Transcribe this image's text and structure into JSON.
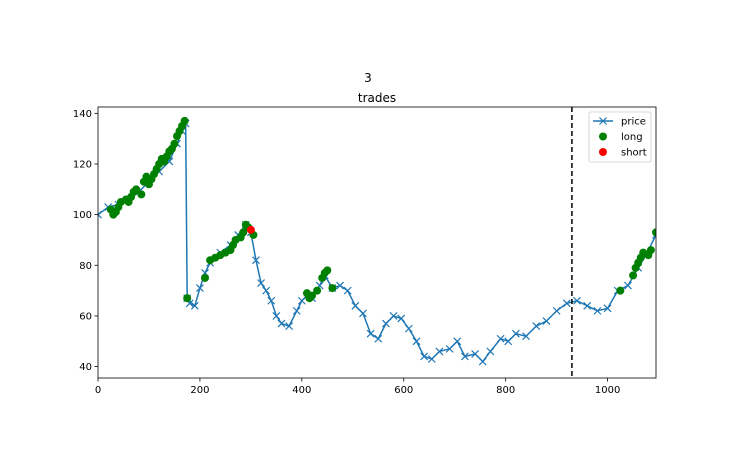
{
  "suptitle": "3",
  "chart_data": {
    "type": "line",
    "title": "trades",
    "xlabel": "",
    "ylabel": "",
    "xlim": [
      0,
      1095
    ],
    "ylim": [
      35.5,
      142.5
    ],
    "xticks": [
      0,
      200,
      400,
      600,
      800,
      1000
    ],
    "yticks": [
      40,
      60,
      80,
      100,
      120,
      140
    ],
    "grid": false,
    "legend_position": "top-right",
    "vline": {
      "x": 930,
      "style": "dashed",
      "color": "#000000"
    },
    "series": [
      {
        "name": "price",
        "kind": "line-x-marker",
        "color": "#1f77b4",
        "x": [
          0,
          20,
          40,
          60,
          80,
          100,
          120,
          140,
          155,
          165,
          172,
          175,
          180,
          190,
          200,
          210,
          220,
          240,
          260,
          275,
          290,
          300,
          310,
          320,
          330,
          340,
          350,
          360,
          375,
          390,
          400,
          410,
          420,
          435,
          445,
          460,
          475,
          490,
          505,
          520,
          535,
          550,
          565,
          580,
          595,
          610,
          625,
          640,
          655,
          670,
          690,
          705,
          720,
          740,
          755,
          770,
          790,
          805,
          820,
          840,
          860,
          880,
          900,
          920,
          940,
          960,
          980,
          1000,
          1020,
          1040,
          1060,
          1075,
          1095
        ],
        "y": [
          100,
          103,
          104,
          106,
          109,
          113,
          117,
          121,
          128,
          133,
          136,
          67,
          65,
          64,
          71,
          77,
          81,
          85,
          88,
          92,
          96,
          93,
          82,
          73,
          70,
          66,
          60,
          57,
          56,
          62,
          66,
          68,
          67,
          72,
          76,
          71,
          72,
          70,
          64,
          61,
          53,
          51,
          57,
          60,
          59,
          55,
          50,
          44,
          43,
          46,
          47,
          50,
          44,
          45,
          42,
          46,
          51,
          50,
          53,
          52,
          56,
          58,
          62,
          65,
          66,
          64,
          62,
          63,
          70,
          72,
          79,
          84,
          92
        ]
      },
      {
        "name": "long",
        "kind": "marker",
        "color": "#008000",
        "x": [
          25,
          30,
          35,
          40,
          45,
          55,
          60,
          65,
          70,
          75,
          85,
          90,
          95,
          100,
          105,
          110,
          115,
          120,
          125,
          130,
          135,
          140,
          145,
          150,
          155,
          160,
          165,
          170,
          175,
          210,
          220,
          230,
          240,
          250,
          260,
          265,
          270,
          280,
          285,
          290,
          295,
          305,
          410,
          415,
          420,
          430,
          440,
          445,
          450,
          460,
          1025,
          1050,
          1055,
          1060,
          1065,
          1070,
          1080,
          1085,
          1095
        ],
        "y": [
          102,
          100,
          101,
          103,
          105,
          106,
          105,
          107,
          109,
          110,
          108,
          113,
          115,
          112,
          114,
          116,
          118,
          120,
          122,
          121,
          123,
          125,
          126,
          128,
          131,
          133,
          135,
          137,
          67,
          75,
          82,
          83,
          84,
          85,
          86,
          88,
          90,
          91,
          93,
          96,
          95,
          92,
          69,
          67,
          68,
          70,
          75,
          77,
          78,
          71,
          70,
          76,
          79,
          81,
          83,
          85,
          84,
          86,
          93
        ]
      },
      {
        "name": "short",
        "kind": "marker",
        "color": "#ff0000",
        "x": [
          300
        ],
        "y": [
          94
        ]
      }
    ]
  }
}
